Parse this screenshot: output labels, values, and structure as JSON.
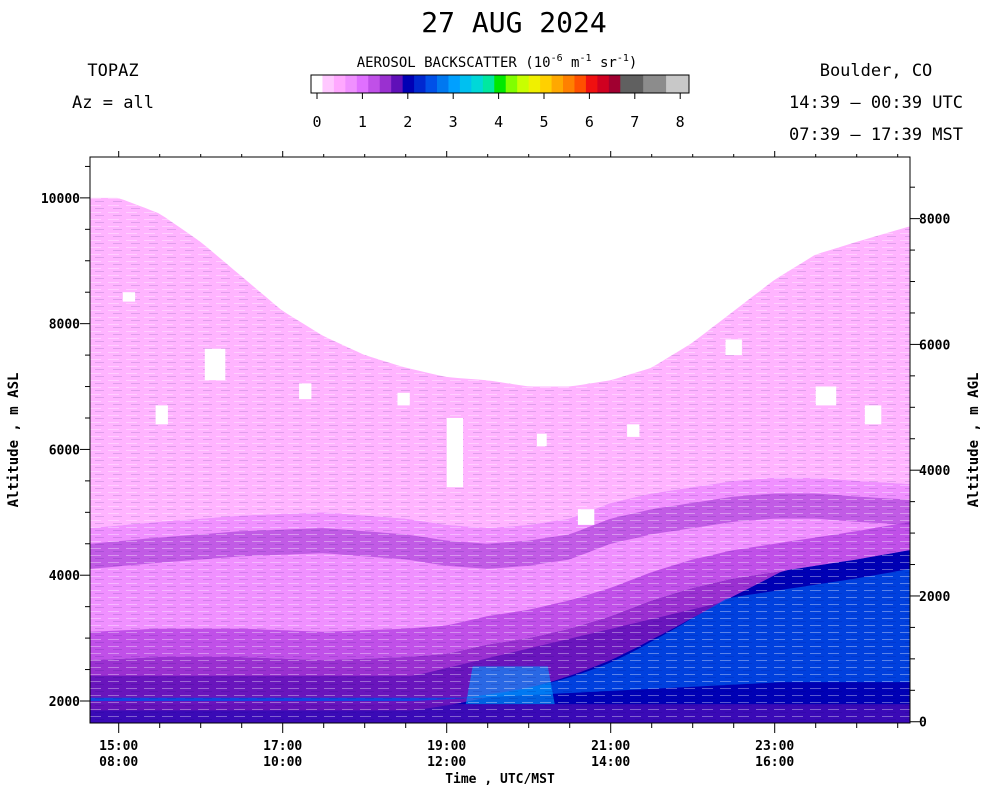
{
  "title": "27 AUG 2024",
  "instrument": "TOPAZ",
  "azimuth": "Az = all",
  "location": "Boulder, CO",
  "time_utc": "14:39 – 00:39 UTC",
  "time_mst": "07:39 – 17:39 MST",
  "colorbar": {
    "title_main": "AEROSOL BACKSCATTER (10",
    "title_exp1": "-6",
    "title_mid1": " m",
    "title_exp2": "-1",
    "title_mid2": " sr",
    "title_exp3": "-1",
    "title_end": ")",
    "ticks": [
      "0",
      "1",
      "2",
      "3",
      "4",
      "5",
      "6",
      "7",
      "8"
    ],
    "colors": [
      "#ffffff",
      "#ffc8ff",
      "#ffa8ff",
      "#f090ff",
      "#e070ff",
      "#c050e8",
      "#9a30d0",
      "#6010b8",
      "#0000b4",
      "#0028d0",
      "#0050e8",
      "#0078f0",
      "#00a0ff",
      "#00c0f0",
      "#00d8d8",
      "#00e8a0",
      "#00e800",
      "#80ff00",
      "#c8ff00",
      "#f0f000",
      "#ffd000",
      "#ffa800",
      "#ff8000",
      "#ff5000",
      "#f01010",
      "#d00020",
      "#a00030",
      "#606060",
      "#606060",
      "#8c8c8c",
      "#8c8c8c",
      "#c8c8c8",
      "#c8c8c8"
    ]
  },
  "chart_data": {
    "type": "heatmap",
    "title": "27 AUG 2024",
    "xlabel": "Time , UTC/MST",
    "ylabel_left": "Altitude , m ASL",
    "ylabel_right": "Altitude , m AGL",
    "x_ticks": [
      {
        "utc": "15:00",
        "mst": "08:00",
        "hour": 15
      },
      {
        "utc": "17:00",
        "mst": "10:00",
        "hour": 17
      },
      {
        "utc": "19:00",
        "mst": "12:00",
        "hour": 19
      },
      {
        "utc": "21:00",
        "mst": "14:00",
        "hour": 21
      },
      {
        "utc": "23:00",
        "mst": "16:00",
        "hour": 23
      }
    ],
    "xlim_hours_utc": [
      14.65,
      24.65
    ],
    "ylim_asl_m": [
      1650,
      10650
    ],
    "y_ticks_asl": [
      2000,
      4000,
      6000,
      8000,
      10000
    ],
    "y_ticks_agl": [
      0,
      2000,
      4000,
      6000,
      8000
    ],
    "agl_offset_m": 1670,
    "value_range": [
      0,
      8
    ],
    "value_units": "10^-6 m^-1 sr^-1",
    "data_top_asl": [
      [
        14.65,
        10000
      ],
      [
        15.0,
        10000
      ],
      [
        15.5,
        9750
      ],
      [
        16.0,
        9300
      ],
      [
        16.5,
        8750
      ],
      [
        17.0,
        8200
      ],
      [
        17.5,
        7800
      ],
      [
        18.0,
        7500
      ],
      [
        18.5,
        7300
      ],
      [
        19.0,
        7150
      ],
      [
        19.5,
        7100
      ],
      [
        20.0,
        7000
      ],
      [
        20.5,
        7000
      ],
      [
        21.0,
        7100
      ],
      [
        21.5,
        7300
      ],
      [
        22.0,
        7700
      ],
      [
        22.5,
        8200
      ],
      [
        23.0,
        8700
      ],
      [
        23.5,
        9100
      ],
      [
        24.0,
        9300
      ],
      [
        24.65,
        9550
      ]
    ],
    "layer_top_asl": [
      [
        14.65,
        4750
      ],
      [
        15.5,
        4850
      ],
      [
        16.5,
        4950
      ],
      [
        17.5,
        5000
      ],
      [
        18.5,
        4900
      ],
      [
        19.0,
        4800
      ],
      [
        19.5,
        4750
      ],
      [
        20.0,
        4800
      ],
      [
        20.5,
        4900
      ],
      [
        21.0,
        5150
      ],
      [
        21.5,
        5300
      ],
      [
        22.0,
        5400
      ],
      [
        22.5,
        5500
      ],
      [
        23.0,
        5550
      ],
      [
        23.5,
        5550
      ],
      [
        24.0,
        5500
      ],
      [
        24.65,
        5450
      ]
    ],
    "mixed_top_asl": [
      [
        14.65,
        2650
      ],
      [
        15.5,
        2700
      ],
      [
        16.5,
        2700
      ],
      [
        17.5,
        2650
      ],
      [
        18.5,
        2700
      ],
      [
        19.0,
        2750
      ],
      [
        19.5,
        2900
      ],
      [
        20.0,
        3000
      ],
      [
        20.5,
        3150
      ],
      [
        21.0,
        3350
      ],
      [
        21.5,
        3600
      ],
      [
        22.0,
        3800
      ],
      [
        22.5,
        3950
      ],
      [
        23.0,
        4050
      ],
      [
        23.5,
        4150
      ],
      [
        24.0,
        4250
      ],
      [
        24.65,
        4400
      ]
    ],
    "colors": {
      "faint": "#ffb4ff",
      "light": "#f090ff",
      "mid": "#c050e8",
      "purple": "#9a30d0",
      "dark_purple": "#6010b8",
      "navy": "#0000b4",
      "blue": "#0050e8",
      "light_blue": "#00a0ff",
      "gap": "#ffffff"
    }
  }
}
